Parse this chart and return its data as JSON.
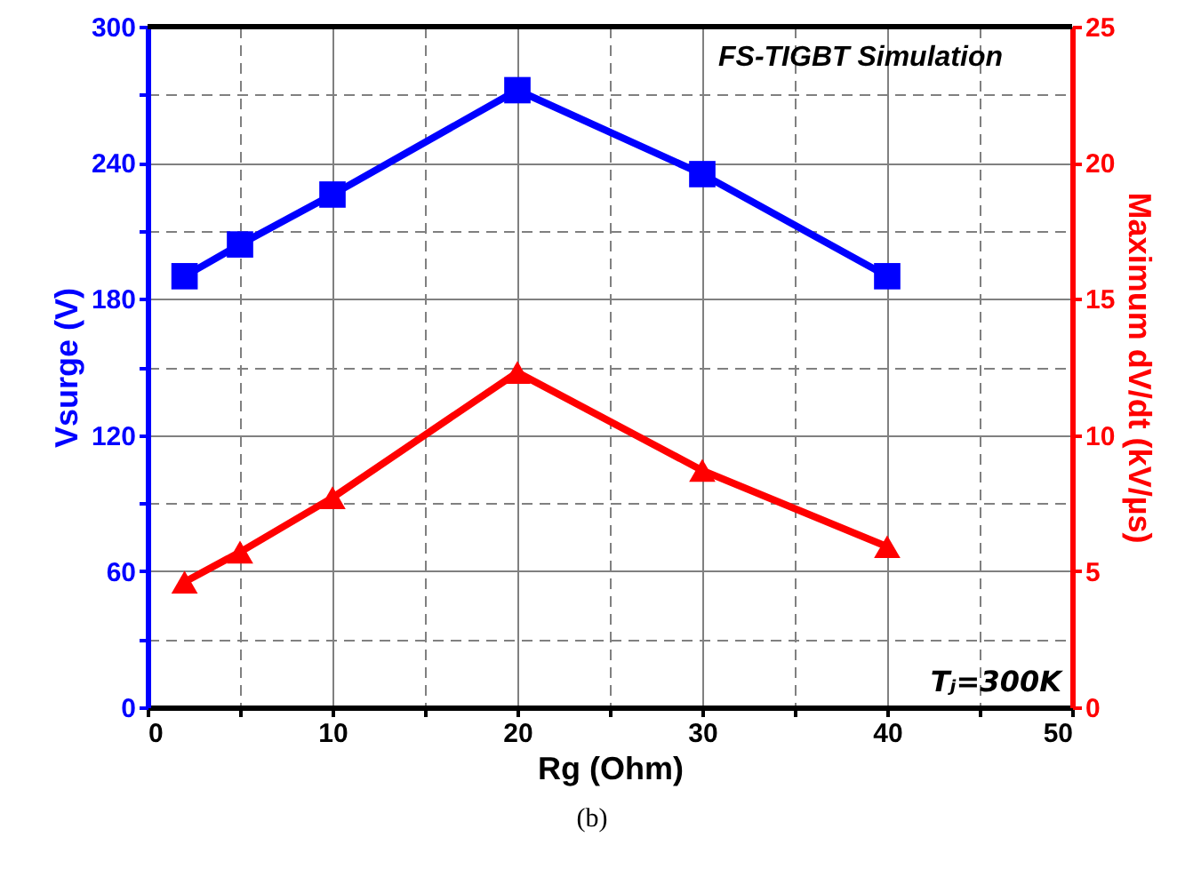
{
  "chart_data": {
    "type": "line",
    "xlabel": "Rg (Ohm)",
    "ylabel": "Vsurge (V)",
    "y2label": "Maximum dV/dt (kV/µs)",
    "x": [
      2,
      5,
      10,
      20,
      30,
      40
    ],
    "series": [
      {
        "color": "#0000ff",
        "marker": "square",
        "values": [
          190,
          204,
          226,
          272,
          235,
          190
        ]
      },
      {
        "color": "#ff0000",
        "marker": "triangle",
        "axis": "y2",
        "values": [
          4.6,
          5.7,
          7.7,
          12.3,
          8.7,
          5.9
        ]
      }
    ],
    "xlim": [
      0,
      50
    ],
    "xticks": [
      0,
      {
        "value": 5,
        "label": null
      },
      10,
      {
        "value": 15,
        "label": null
      },
      20,
      {
        "value": 25,
        "label": null
      },
      30,
      {
        "value": 35,
        "label": null
      },
      40,
      {
        "value": 45,
        "label": null
      },
      50
    ],
    "ylim": [
      0,
      300
    ],
    "yticks": [
      0,
      {
        "value": 30,
        "label": null
      },
      60,
      {
        "value": 90,
        "label": null
      },
      120,
      {
        "value": 150,
        "label": null
      },
      180,
      {
        "value": 210,
        "label": null
      },
      240,
      {
        "value": 270,
        "label": null
      },
      300
    ],
    "y2lim": [
      0,
      25
    ],
    "y2ticks": [
      0,
      5,
      10,
      15,
      20,
      25
    ],
    "grid": true,
    "line_style": "solid",
    "annotations": [
      "FS-TIGBT Simulation",
      "Tⱼ=300K",
      "(b)"
    ]
  }
}
